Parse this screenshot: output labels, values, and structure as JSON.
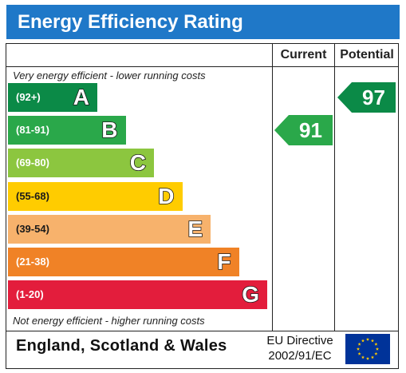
{
  "header": {
    "title": "Energy Efficiency Rating"
  },
  "columns": {
    "current": "Current",
    "potential": "Potential"
  },
  "captions": {
    "top": "Very energy efficient - lower running costs",
    "bottom": "Not energy efficient - higher running costs"
  },
  "footer": {
    "region": "England, Scotland & Wales",
    "directive_line1": "EU Directive",
    "directive_line2": "2002/91/EC",
    "flag_icon": "eu-flag-icon"
  },
  "chart_data": {
    "type": "bar",
    "title": "Energy Efficiency Rating",
    "bands": [
      {
        "letter": "A",
        "range": "(92+)",
        "color": "#0b8a47"
      },
      {
        "letter": "B",
        "range": "(81-91)",
        "color": "#2aa84a"
      },
      {
        "letter": "C",
        "range": "(69-80)",
        "color": "#8cc63f"
      },
      {
        "letter": "D",
        "range": "(55-68)",
        "color": "#ffcc00"
      },
      {
        "letter": "E",
        "range": "(39-54)",
        "color": "#f7b26c"
      },
      {
        "letter": "F",
        "range": "(21-38)",
        "color": "#f08226"
      },
      {
        "letter": "G",
        "range": "(1-20)",
        "color": "#e31d3c"
      }
    ],
    "current": {
      "value": 91,
      "label": "91",
      "band": "B",
      "color": "#2aa84a"
    },
    "potential": {
      "value": 97,
      "label": "97",
      "band": "A",
      "color": "#0b8a47"
    }
  }
}
